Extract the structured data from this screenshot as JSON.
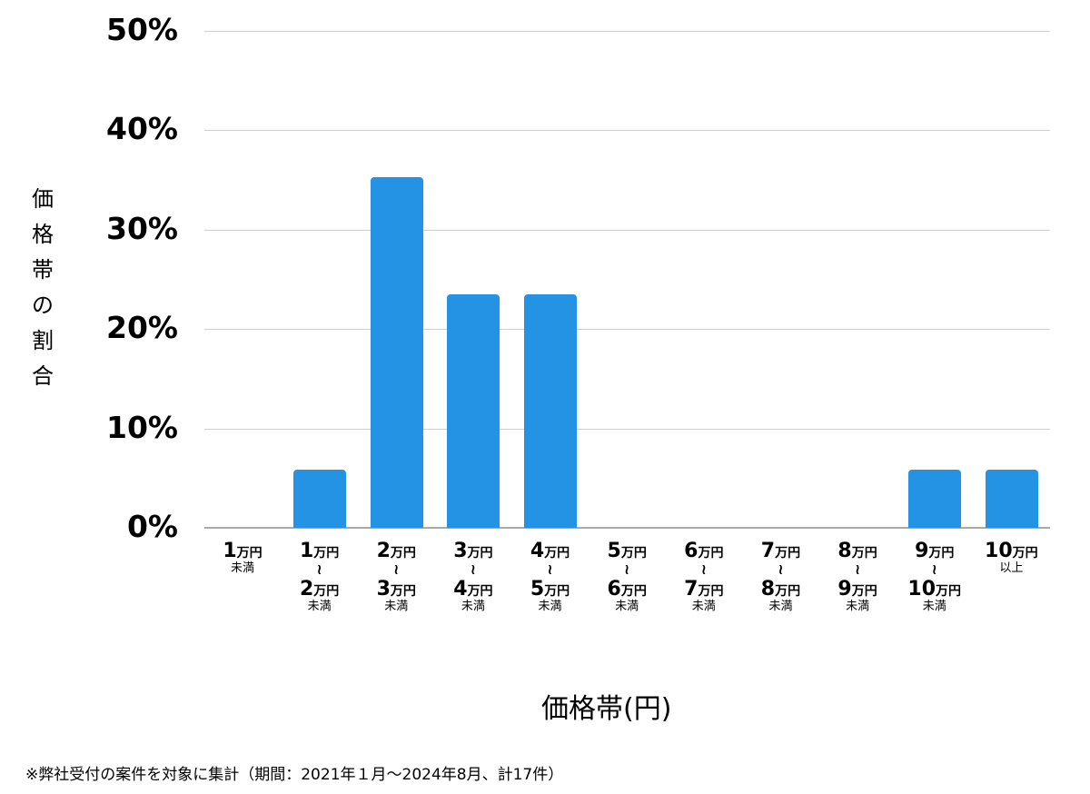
{
  "chart_data": {
    "type": "bar",
    "title": "",
    "xlabel": "価格帯(円)",
    "ylabel": "価格帯の割合",
    "ylim": [
      0,
      50
    ],
    "yticks": [
      "0%",
      "10%",
      "20%",
      "30%",
      "40%",
      "50%"
    ],
    "grid": true,
    "legend": null,
    "categories": [
      "1万円未満",
      "1万円〜2万円未満",
      "2万円〜3万円未満",
      "3万円〜4万円未満",
      "4万円〜5万円未満",
      "5万円〜6万円未満",
      "6万円〜7万円未満",
      "7万円〜8万円未満",
      "8万円〜9万円未満",
      "9万円〜10万円未満",
      "10万円以上"
    ],
    "values": [
      0,
      5.88,
      35.29,
      23.53,
      23.53,
      0,
      0,
      0,
      0,
      5.88,
      5.88
    ],
    "counts": [
      0,
      1,
      6,
      4,
      4,
      0,
      0,
      0,
      0,
      1,
      1
    ],
    "bar_color": "#2593e4",
    "annotation": "※弊社受付の案件を対象に集計（期間：2021年１月〜2024年8月、計17件）"
  },
  "axis": {
    "ylabel_chars": [
      "価",
      "格",
      "帯",
      "の",
      "割",
      "合"
    ],
    "yticks": [
      "0%",
      "10%",
      "20%",
      "30%",
      "40%",
      "50%"
    ],
    "xtitle": "価格帯(円)"
  },
  "xcats": [
    {
      "from": "1",
      "unit": "万円",
      "to": "",
      "suffix": "未満"
    },
    {
      "from": "1",
      "unit": "万円",
      "to": "2",
      "suffix": "未満"
    },
    {
      "from": "2",
      "unit": "万円",
      "to": "3",
      "suffix": "未満"
    },
    {
      "from": "3",
      "unit": "万円",
      "to": "4",
      "suffix": "未満"
    },
    {
      "from": "4",
      "unit": "万円",
      "to": "5",
      "suffix": "未満"
    },
    {
      "from": "5",
      "unit": "万円",
      "to": "6",
      "suffix": "未満"
    },
    {
      "from": "6",
      "unit": "万円",
      "to": "7",
      "suffix": "未満"
    },
    {
      "from": "7",
      "unit": "万円",
      "to": "8",
      "suffix": "未満"
    },
    {
      "from": "8",
      "unit": "万円",
      "to": "9",
      "suffix": "未満"
    },
    {
      "from": "9",
      "unit": "万円",
      "to": "10",
      "suffix": "未満"
    },
    {
      "from": "10",
      "unit": "万円",
      "to": "",
      "suffix": "以上"
    }
  ],
  "tilde": "〰",
  "footnote": "※弊社受付の案件を対象に集計（期間：2021年１月〜2024年8月、計17件）"
}
